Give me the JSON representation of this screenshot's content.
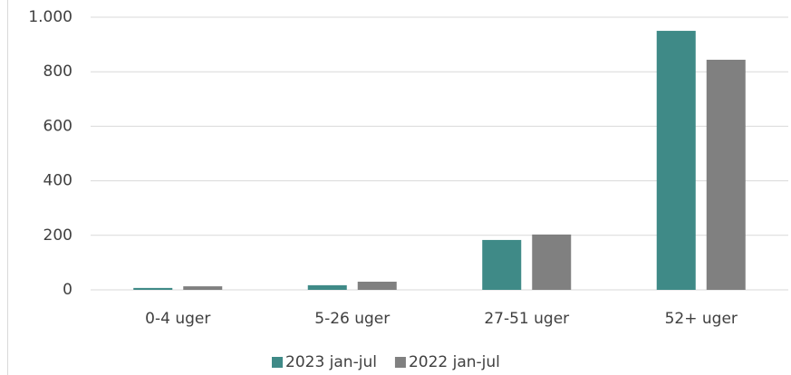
{
  "chart_data": {
    "type": "bar",
    "categories": [
      "0-4 uger",
      "5-26 uger",
      "27-51 uger",
      "52+ uger"
    ],
    "series": [
      {
        "name": "2023 jan-jul",
        "color": "#3f8a87",
        "values": [
          7,
          17,
          183,
          950
        ]
      },
      {
        "name": "2022 jan-jul",
        "color": "#808080",
        "values": [
          13,
          30,
          203,
          844
        ]
      }
    ],
    "ylim": [
      0,
      1000
    ],
    "yticks": [
      0,
      200,
      400,
      600,
      800,
      {
        "value": 1000,
        "label": "1.000"
      }
    ],
    "grid": true,
    "legend": "bottom"
  }
}
